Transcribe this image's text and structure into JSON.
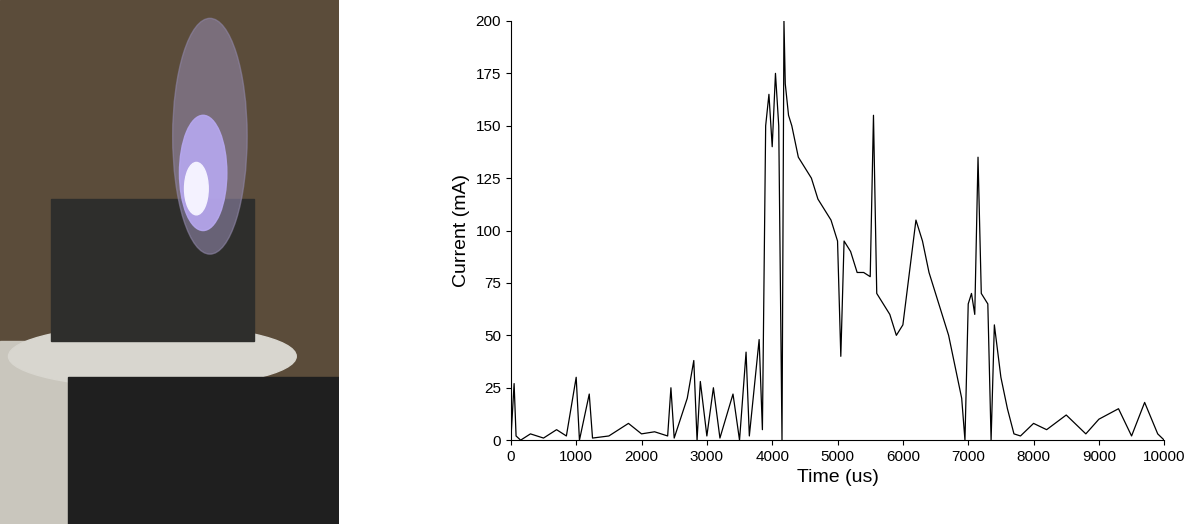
{
  "chart_data": {
    "type": "line",
    "x_label": "Time (us)",
    "y_label": "Current (mA)",
    "color": "#000000",
    "x": [
      0,
      50,
      80,
      150,
      300,
      500,
      700,
      850,
      1000,
      1050,
      1200,
      1250,
      1500,
      1800,
      2000,
      2200,
      2400,
      2450,
      2500,
      2700,
      2800,
      2850,
      2900,
      3000,
      3100,
      3200,
      3400,
      3500,
      3600,
      3650,
      3800,
      3850,
      3900,
      3950,
      4000,
      4050,
      4100,
      4150,
      4180,
      4200,
      4250,
      4300,
      4400,
      4500,
      4600,
      4700,
      4800,
      4900,
      5000,
      5050,
      5100,
      5200,
      5300,
      5400,
      5500,
      5550,
      5600,
      5700,
      5800,
      5900,
      6000,
      6100,
      6200,
      6300,
      6400,
      6500,
      6600,
      6700,
      6800,
      6900,
      6950,
      7000,
      7050,
      7100,
      7150,
      7200,
      7300,
      7350,
      7400,
      7500,
      7600,
      7700,
      7800,
      8000,
      8200,
      8500,
      8800,
      9000,
      9300,
      9500,
      9700,
      9900,
      10000
    ],
    "values": [
      0,
      27,
      2,
      0,
      3,
      1,
      5,
      2,
      30,
      0,
      22,
      1,
      2,
      8,
      3,
      4,
      2,
      25,
      1,
      20,
      38,
      0,
      28,
      2,
      25,
      1,
      22,
      0,
      42,
      2,
      48,
      5,
      150,
      165,
      140,
      175,
      150,
      0,
      200,
      170,
      155,
      150,
      135,
      130,
      125,
      115,
      110,
      105,
      95,
      40,
      95,
      90,
      80,
      80,
      78,
      155,
      70,
      65,
      60,
      50,
      55,
      80,
      105,
      95,
      80,
      70,
      60,
      50,
      35,
      20,
      0,
      65,
      70,
      60,
      135,
      70,
      65,
      0,
      55,
      30,
      15,
      3,
      2,
      8,
      5,
      12,
      3,
      10,
      15,
      2,
      18,
      3,
      0
    ],
    "xlim": [
      0,
      10000
    ],
    "xticks": [
      0,
      1000,
      2000,
      3000,
      4000,
      5000,
      6000,
      7000,
      8000,
      9000,
      10000
    ],
    "ylim": [
      0,
      200
    ],
    "yticks": [
      0,
      25,
      50,
      75,
      100,
      125,
      150,
      175,
      200
    ]
  }
}
